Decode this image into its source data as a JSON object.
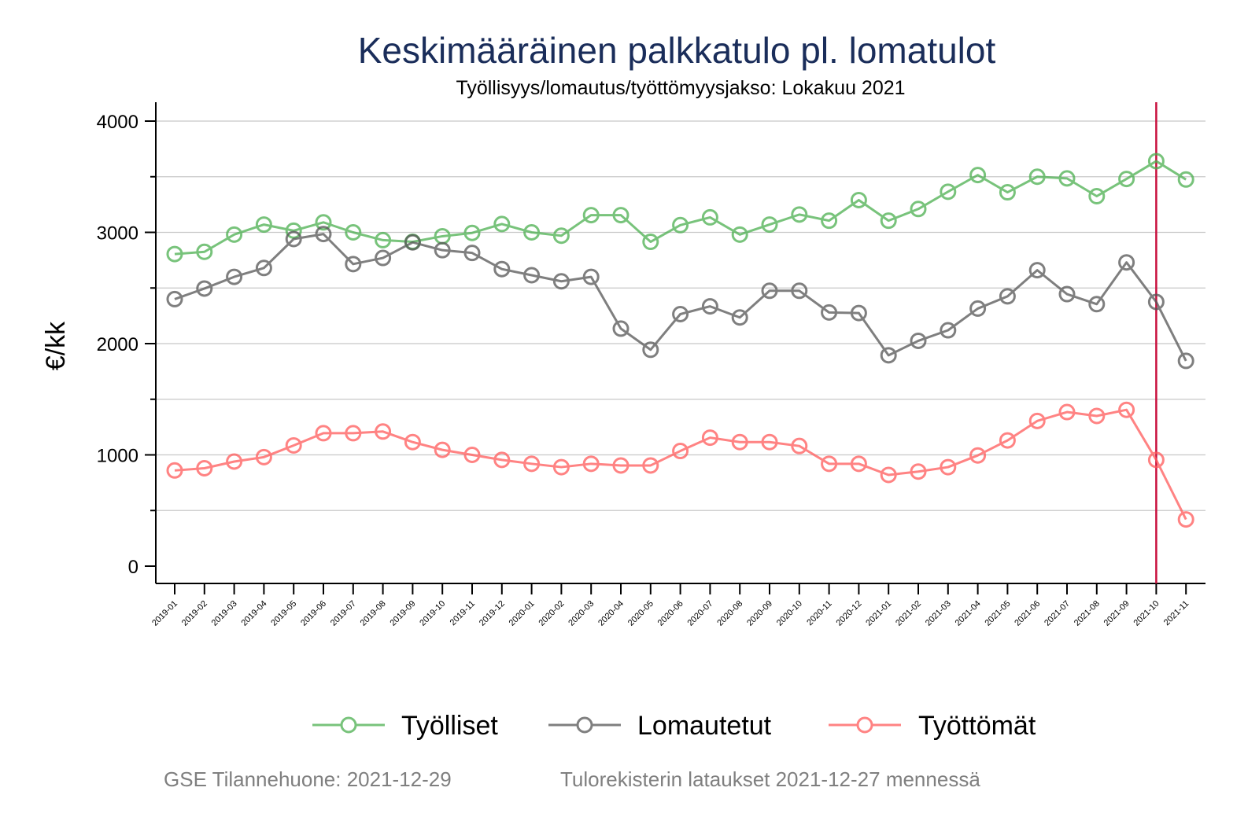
{
  "chart_data": {
    "type": "line",
    "title": "Keskimääräinen palkkatulo pl. lomatulot",
    "subtitle": "Työllisyys/lomautus/työttömyysjakso: Lokakuu 2021",
    "xlabel": "",
    "ylabel": "€/kk",
    "ylim": [
      0,
      4000
    ],
    "yticks": [
      0,
      1000,
      2000,
      3000,
      4000
    ],
    "yticks_minor": [
      500,
      1500,
      2500,
      3500
    ],
    "grid": true,
    "legend_position": "bottom",
    "x": [
      "2019-01",
      "2019-02",
      "2019-03",
      "2019-04",
      "2019-05",
      "2019-06",
      "2019-07",
      "2019-08",
      "2019-09",
      "2019-10",
      "2019-11",
      "2019-12",
      "2020-01",
      "2020-02",
      "2020-03",
      "2020-04",
      "2020-05",
      "2020-06",
      "2020-07",
      "2020-08",
      "2020-09",
      "2020-10",
      "2020-11",
      "2020-12",
      "2021-01",
      "2021-02",
      "2021-03",
      "2021-04",
      "2021-05",
      "2021-06",
      "2021-07",
      "2021-08",
      "2021-09",
      "2021-10",
      "2021-11"
    ],
    "reference_line": {
      "x": "2021-10",
      "color": "#c8103e"
    },
    "series": [
      {
        "name": "Työlliset",
        "color": "#4caf50",
        "values": [
          2805,
          2825,
          2980,
          3070,
          3015,
          3090,
          3000,
          2930,
          2915,
          2965,
          2995,
          3075,
          3000,
          2970,
          3155,
          3155,
          2915,
          3065,
          3135,
          2980,
          3070,
          3160,
          3105,
          3290,
          3105,
          3210,
          3365,
          3515,
          3360,
          3500,
          3485,
          3325,
          3480,
          3640,
          3475
        ]
      },
      {
        "name": "Lomautetut",
        "color": "#555555",
        "values": [
          2400,
          2495,
          2600,
          2680,
          2940,
          2985,
          2715,
          2770,
          2910,
          2840,
          2815,
          2670,
          2615,
          2560,
          2600,
          2135,
          1945,
          2265,
          2335,
          2235,
          2475,
          2475,
          2280,
          2275,
          1895,
          2025,
          2120,
          2315,
          2425,
          2660,
          2445,
          2355,
          2730,
          2375,
          1845
        ]
      },
      {
        "name": "Työttömät",
        "color": "#ff5a5a",
        "values": [
          860,
          880,
          940,
          980,
          1085,
          1195,
          1195,
          1210,
          1115,
          1045,
          1000,
          955,
          920,
          890,
          920,
          905,
          905,
          1035,
          1155,
          1115,
          1115,
          1080,
          920,
          920,
          820,
          850,
          890,
          995,
          1130,
          1305,
          1385,
          1350,
          1405,
          955,
          420
        ]
      }
    ]
  },
  "footer": {
    "left_note": "GSE Tilannehuone: 2021-12-29",
    "right_note": "Tulorekisterin lataukset 2021-12-27 mennessä"
  }
}
